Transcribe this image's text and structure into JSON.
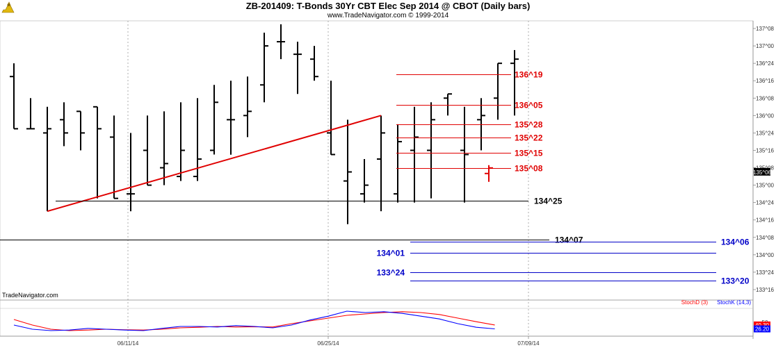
{
  "header": {
    "title": "ZB-201409:  T-Bonds 30Yr CBT Elec Sep 2014 @ CBOT  (Daily bars)",
    "subtitle": "www.TradeNavigator.com © 1999-2014"
  },
  "watermark": "TradeNavigator.com",
  "colors": {
    "bar": "#000000",
    "bar_grey": "#888888",
    "trendline": "#e00000",
    "level_red": "#e00000",
    "level_blue": "#0000c8",
    "stoch_d": "#ff0000",
    "stoch_k": "#0000ff",
    "grid": "#9a9a9a",
    "last_price_bg": "#000000"
  },
  "chart_data": [
    {
      "type": "bar",
      "name": "price",
      "y_tick_labels": [
        "133^16",
        "133^24",
        "134^00",
        "134^08",
        "134^16",
        "134^24",
        "135^00",
        "135^08",
        "135^16",
        "135^24",
        "136^00",
        "136^08",
        "136^16",
        "136^24",
        "137^00",
        "137^08"
      ],
      "y_tick_values": [
        133.5,
        133.75,
        134.0,
        134.25,
        134.5,
        134.75,
        135.0,
        135.25,
        135.5,
        135.75,
        136.0,
        136.25,
        136.5,
        136.75,
        137.0,
        137.25
      ],
      "ylim": [
        133.35,
        137.36
      ],
      "x_tick_labels": [
        "06/11/14",
        "06/25/14",
        "07/09/14"
      ],
      "x_tick_index": [
        7.0,
        19.0,
        31.0
      ],
      "last_price_label": "135^06",
      "last_price": 135.1875,
      "bars": [
        {
          "i": 0,
          "h": 136.75,
          "l": 135.81,
          "o": 136.56,
          "c": 135.81,
          "grey": false
        },
        {
          "i": 1,
          "h": 136.25,
          "l": 135.81,
          "o": 135.81,
          "c": 135.81,
          "grey": false
        },
        {
          "i": 2,
          "h": 136.125,
          "l": 134.625,
          "o": 135.75,
          "c": 135.81,
          "grey": false
        },
        {
          "i": 3,
          "h": 136.19,
          "l": 135.56,
          "o": 135.94,
          "c": 135.75,
          "grey": false
        },
        {
          "i": 4,
          "h": 136.06,
          "l": 135.5,
          "o": 136.06,
          "c": 135.75,
          "grey": false
        },
        {
          "i": 5,
          "h": 136.125,
          "l": 134.81,
          "o": 136.125,
          "c": 135.81,
          "grey": false
        },
        {
          "i": 6,
          "h": 136.0,
          "l": 134.81,
          "o": 135.69,
          "c": 134.81,
          "grey": false
        },
        {
          "i": 7,
          "h": 135.75,
          "l": 134.625,
          "o": 134.875,
          "c": 134.875,
          "grey": false
        },
        {
          "i": 8,
          "h": 136.0,
          "l": 135.0,
          "o": 135.5,
          "c": 135.0,
          "grey": false
        },
        {
          "i": 9,
          "h": 136.06,
          "l": 135.0,
          "o": 135.25,
          "c": 135.31,
          "grey": false
        },
        {
          "i": 10,
          "h": 136.19,
          "l": 135.06,
          "o": 135.125,
          "c": 135.5,
          "grey": false
        },
        {
          "i": 11,
          "h": 136.25,
          "l": 135.06,
          "o": 135.125,
          "c": 135.375,
          "grey": false
        },
        {
          "i": 12,
          "h": 136.44,
          "l": 135.44,
          "o": 135.5,
          "c": 136.19,
          "grey": false
        },
        {
          "i": 13,
          "h": 136.5,
          "l": 135.4375,
          "o": 135.94,
          "c": 135.94,
          "grey": false
        },
        {
          "i": 14,
          "h": 136.56,
          "l": 135.69,
          "o": 136.0,
          "c": 136.06,
          "grey": false
        },
        {
          "i": 15,
          "h": 137.19,
          "l": 136.19,
          "o": 136.44,
          "c": 137.0,
          "grey": false
        },
        {
          "i": 16,
          "h": 137.31,
          "l": 136.81,
          "o": 137.06,
          "c": 137.06,
          "grey": false
        },
        {
          "i": 17,
          "h": 137.06,
          "l": 136.31,
          "o": 136.88,
          "c": 136.88,
          "grey": false
        },
        {
          "i": 18,
          "h": 137.0,
          "l": 136.5,
          "o": 136.81,
          "c": 136.56,
          "grey": false
        },
        {
          "i": 19,
          "h": 136.5,
          "l": 135.4375,
          "o": 135.75,
          "c": 135.44,
          "grey": false
        },
        {
          "i": 20,
          "h": 135.94,
          "l": 134.44,
          "o": 135.06,
          "c": 135.19,
          "grey": false
        },
        {
          "i": 21,
          "h": 135.375,
          "l": 134.75,
          "o": 134.875,
          "c": 135.0,
          "grey": false
        },
        {
          "i": 22,
          "h": 136.0,
          "l": 134.625,
          "o": 135.375,
          "c": 135.75,
          "grey": false
        },
        {
          "i": 23,
          "h": 135.875,
          "l": 134.75,
          "o": 134.875,
          "c": 135.625,
          "grey": false
        },
        {
          "i": 24,
          "h": 136.125,
          "l": 134.75,
          "o": 135.5,
          "c": 135.69,
          "grey": false
        },
        {
          "i": 25,
          "h": 136.19,
          "l": 134.81,
          "o": 135.5,
          "c": 135.94,
          "grey": false
        },
        {
          "i": 26,
          "h": 136.31,
          "l": 136.0,
          "o": 136.25,
          "c": 136.31,
          "grey": false
        },
        {
          "i": 27,
          "h": 136.125,
          "l": 134.75,
          "o": 135.5,
          "c": 135.44,
          "grey": false
        },
        {
          "i": 28,
          "h": 136.25,
          "l": 135.5,
          "o": 135.94,
          "c": 136.0,
          "grey": false
        },
        {
          "i": 29,
          "h": 136.75,
          "l": 135.94,
          "o": 136.25,
          "c": 136.75,
          "grey": false
        },
        {
          "i": 30,
          "h": 136.94,
          "l": 136.0,
          "o": 136.75,
          "c": 136.81,
          "grey": false
        }
      ]
    },
    {
      "type": "line",
      "name": "stochastic",
      "ylim": [
        0,
        100
      ],
      "y_tick_labels": [
        "50"
      ],
      "y_tick_values": [
        50
      ],
      "current_value_labels": [
        "40.30",
        "26.20"
      ],
      "current_values": [
        40.3,
        26.2
      ],
      "series": [
        {
          "name": "StochD (3)",
          "values": [
            60,
            40,
            25,
            20,
            22,
            25,
            23,
            22,
            25,
            30,
            32,
            35,
            33,
            34,
            33,
            45,
            55,
            65,
            75,
            80,
            85,
            88,
            85,
            78,
            65,
            52,
            40.3
          ]
        },
        {
          "name": "StochK (14,3)",
          "values": [
            40,
            25,
            20,
            22,
            28,
            25,
            22,
            20,
            28,
            35,
            35,
            33,
            38,
            35,
            30,
            40,
            58,
            72,
            90,
            85,
            88,
            82,
            72,
            62,
            45,
            32,
            26.2
          ]
        }
      ]
    }
  ]
}
